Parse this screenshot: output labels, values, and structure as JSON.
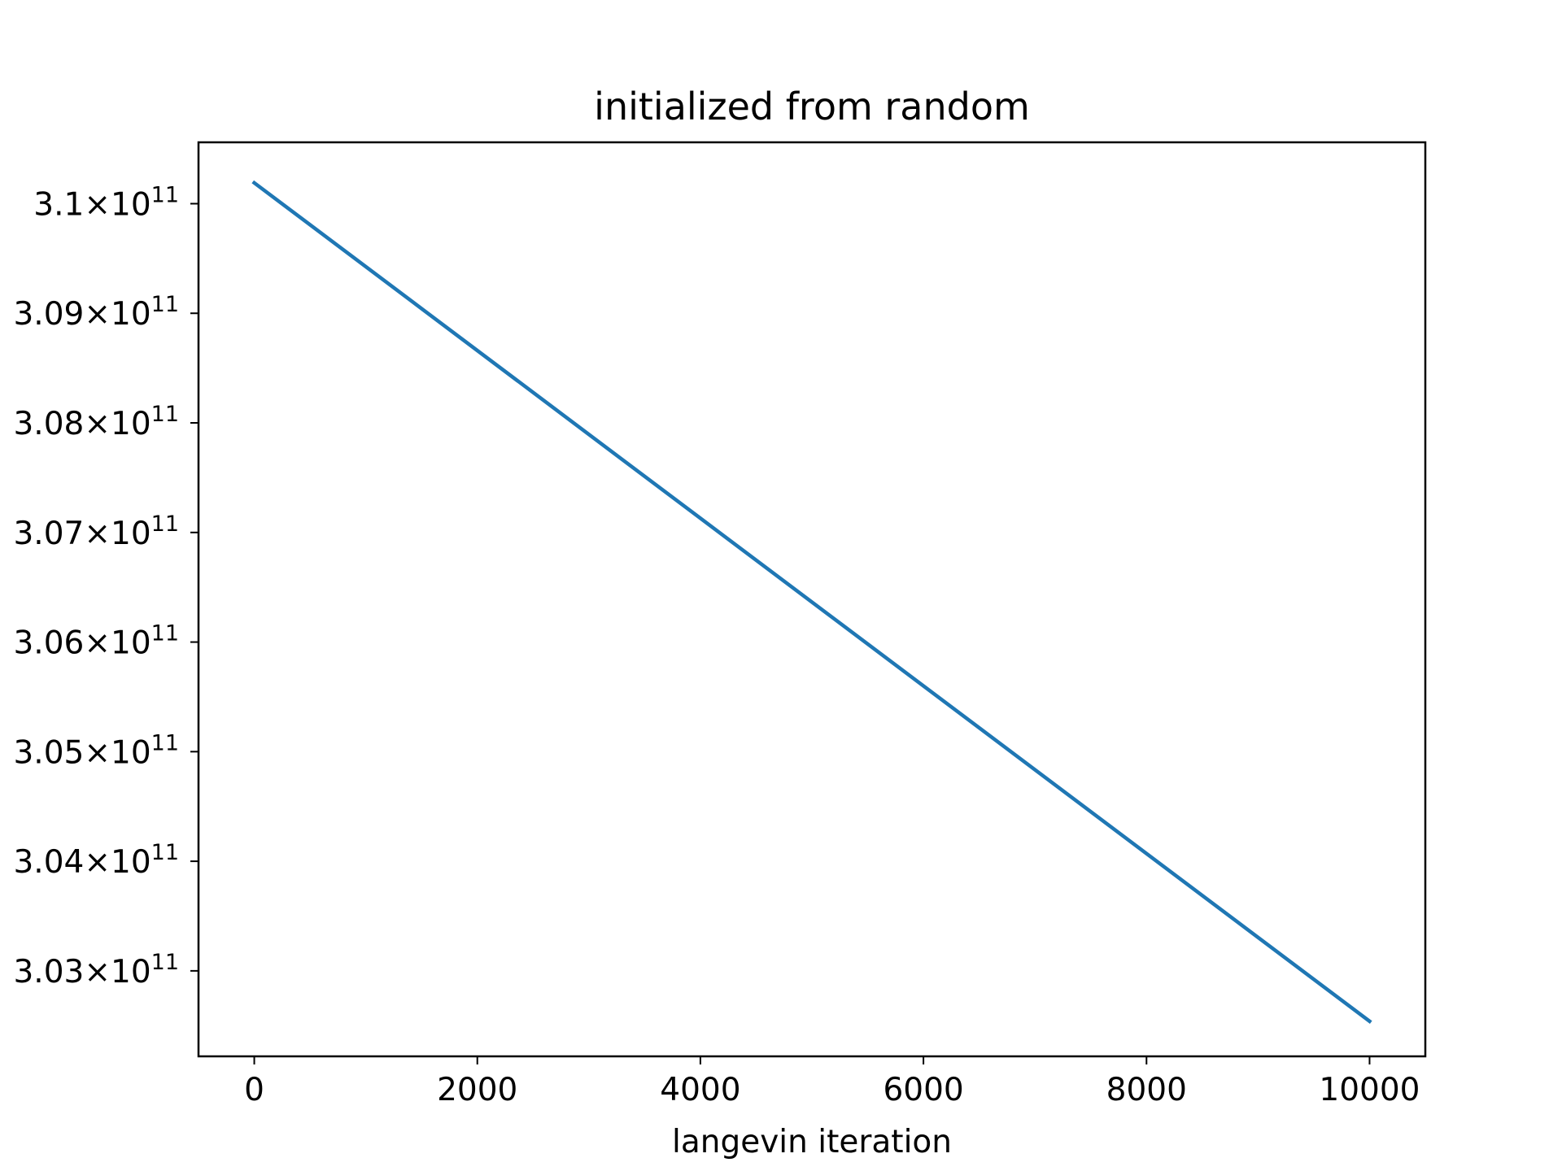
{
  "chart_data": {
    "type": "line",
    "title": "initialized from random",
    "xlabel": "langevin iteration",
    "ylabel": "",
    "xlim": [
      -500,
      10500
    ],
    "ylim": [
      302220000000.0,
      310560000000.0
    ],
    "x_ticks": [
      0,
      2000,
      4000,
      6000,
      8000,
      10000
    ],
    "x_tick_labels": [
      "0",
      "2000",
      "4000",
      "6000",
      "8000",
      "10000"
    ],
    "y_ticks": [
      {
        "value": 303000000000.0,
        "mantissa": "3.03",
        "exponent": "11"
      },
      {
        "value": 304000000000.0,
        "mantissa": "3.04",
        "exponent": "11"
      },
      {
        "value": 305000000000.0,
        "mantissa": "3.05",
        "exponent": "11"
      },
      {
        "value": 306000000000.0,
        "mantissa": "3.06",
        "exponent": "11"
      },
      {
        "value": 307000000000.0,
        "mantissa": "3.07",
        "exponent": "11"
      },
      {
        "value": 308000000000.0,
        "mantissa": "3.08",
        "exponent": "11"
      },
      {
        "value": 309000000000.0,
        "mantissa": "3.09",
        "exponent": "11"
      },
      {
        "value": 310000000000.0,
        "mantissa": "3.1",
        "exponent": "11"
      }
    ],
    "grid": false,
    "legend": "none",
    "series": [
      {
        "color": "#1f77b4",
        "x": [
          0,
          10000
        ],
        "y": [
          310190000000.0,
          302540000000.0
        ]
      }
    ]
  }
}
